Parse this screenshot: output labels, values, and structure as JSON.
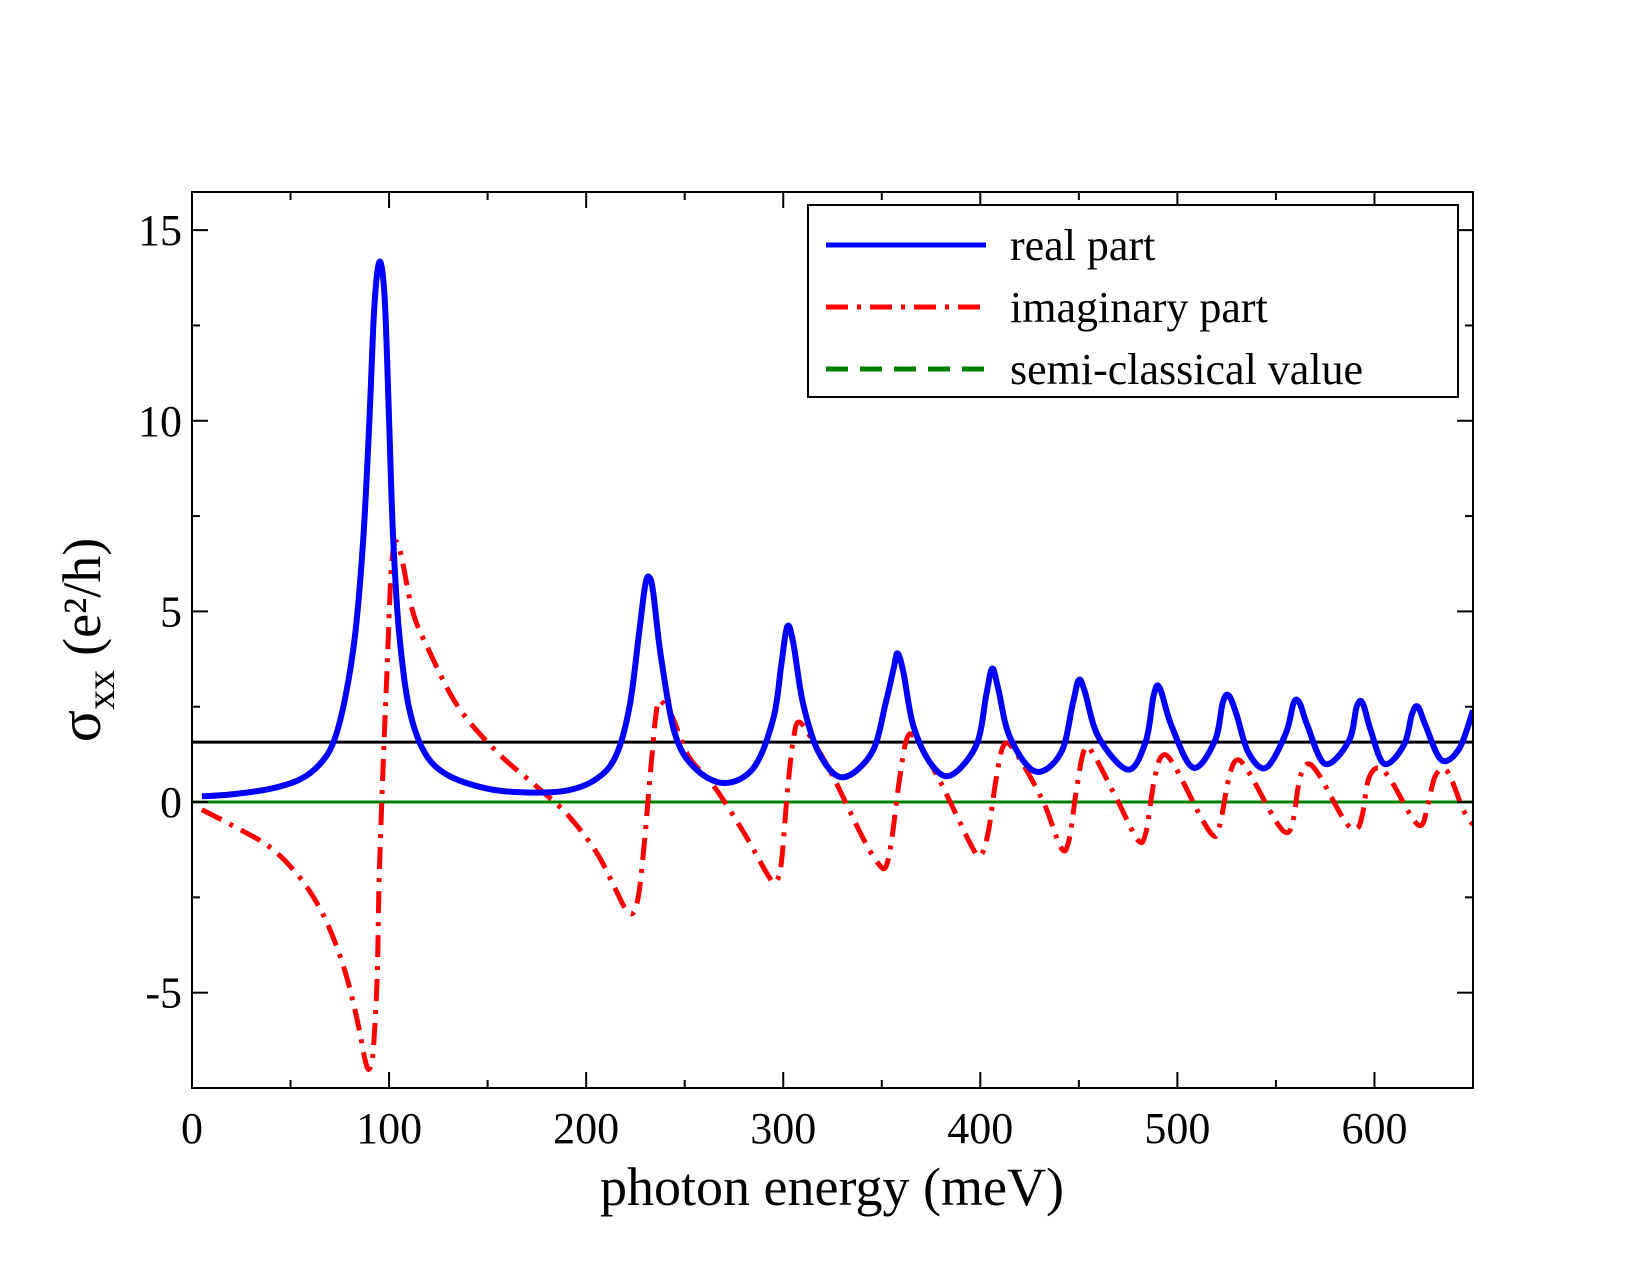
{
  "chart_data": {
    "type": "line",
    "xlabel": "photon energy (meV)",
    "ylabel": {
      "symbol": "σ",
      "subscript": "xx",
      "unit": "(e²/h)"
    },
    "xlim": [
      0,
      650
    ],
    "ylim": [
      -7.5,
      16
    ],
    "xticks": [
      0,
      100,
      200,
      300,
      400,
      500,
      600
    ],
    "yticks": [
      -5,
      0,
      5,
      10,
      15
    ],
    "xtick_labels": [
      "0",
      "100",
      "200",
      "300",
      "400",
      "500",
      "600"
    ],
    "ytick_labels": [
      "-5",
      "0",
      "5",
      "10",
      "15"
    ],
    "x_minor_step": 50,
    "y_minor_step": 2.5,
    "grid": false,
    "legend_position": "top-right",
    "series": [
      {
        "name": "real part",
        "color": "#0000ff",
        "style": "solid",
        "x": [
          5,
          20,
          40,
          55,
          65,
          72,
          78,
          83,
          87,
          90,
          92,
          94,
          96,
          98,
          100,
          102,
          105,
          110,
          118,
          130,
          150,
          170,
          190,
          205,
          215,
          222,
          227,
          230,
          232,
          234,
          238,
          245,
          255,
          270,
          285,
          295,
          299,
          302,
          305,
          310,
          318,
          330,
          345,
          352,
          356,
          358,
          361,
          366,
          375,
          385,
          398,
          403,
          406,
          409,
          415,
          428,
          441,
          447,
          450,
          453,
          460,
          475,
          484,
          488,
          491,
          497,
          508,
          519,
          523,
          526,
          530,
          536,
          545,
          555,
          559,
          562,
          566,
          575,
          587,
          591,
          594,
          598,
          605,
          615,
          619,
          622,
          626,
          634,
          643,
          650
        ],
        "y": [
          0.15,
          0.2,
          0.35,
          0.6,
          1.0,
          1.6,
          2.8,
          4.5,
          7.0,
          10.0,
          12.5,
          13.9,
          14.1,
          13.0,
          10.0,
          7.0,
          4.5,
          2.5,
          1.3,
          0.7,
          0.35,
          0.25,
          0.3,
          0.6,
          1.2,
          2.5,
          4.5,
          5.7,
          5.9,
          5.5,
          3.8,
          1.8,
          0.9,
          0.5,
          0.9,
          2.2,
          3.6,
          4.6,
          4.2,
          2.6,
          1.3,
          0.65,
          1.3,
          2.6,
          3.5,
          3.9,
          3.4,
          2.0,
          1.0,
          0.7,
          1.5,
          2.8,
          3.5,
          3.0,
          1.7,
          0.8,
          1.3,
          2.6,
          3.2,
          2.9,
          1.7,
          0.85,
          1.6,
          2.8,
          3.0,
          2.0,
          0.9,
          1.6,
          2.6,
          2.8,
          2.3,
          1.3,
          0.9,
          1.8,
          2.6,
          2.6,
          2.0,
          1.0,
          1.6,
          2.5,
          2.6,
          1.9,
          1.0,
          1.5,
          2.3,
          2.5,
          2.0,
          1.1,
          1.4,
          2.4
        ]
      },
      {
        "name": "imaginary part",
        "color": "#ff0000",
        "style": "dash-dot",
        "x": [
          5,
          20,
          40,
          55,
          65,
          72,
          78,
          82,
          85,
          88,
          90,
          92,
          94,
          95,
          97,
          99,
          101,
          103,
          106,
          112,
          120,
          135,
          155,
          175,
          190,
          205,
          215,
          220,
          224,
          227,
          230,
          233,
          236,
          239,
          244,
          252,
          265,
          280,
          292,
          296,
          299,
          302,
          305,
          308,
          315,
          325,
          340,
          348,
          352,
          355,
          359,
          363,
          368,
          380,
          395,
          400,
          404,
          408,
          412,
          418,
          432,
          441,
          445,
          449,
          453,
          458,
          470,
          480,
          484,
          488,
          492,
          498,
          512,
          519,
          522,
          526,
          530,
          536,
          550,
          556,
          559,
          562,
          566,
          572,
          585,
          591,
          594,
          597,
          602,
          608,
          619,
          624,
          627,
          631,
          637,
          645,
          650
        ],
        "y": [
          -0.2,
          -0.6,
          -1.2,
          -2.0,
          -2.8,
          -3.6,
          -4.5,
          -5.3,
          -6.0,
          -6.8,
          -7.0,
          -6.5,
          -4.5,
          -2.0,
          1.0,
          3.5,
          6.0,
          6.8,
          6.5,
          5.0,
          4.0,
          2.5,
          1.3,
          0.4,
          -0.3,
          -1.3,
          -2.3,
          -2.8,
          -2.9,
          -2.3,
          -0.8,
          1.0,
          2.5,
          2.6,
          2.2,
          1.2,
          0.4,
          -0.8,
          -1.9,
          -2.1,
          -1.6,
          0.2,
          1.6,
          2.1,
          1.6,
          0.7,
          -0.9,
          -1.6,
          -1.7,
          -1.0,
          0.6,
          1.7,
          1.6,
          0.5,
          -1.1,
          -1.4,
          -0.8,
          0.6,
          1.5,
          1.3,
          0.0,
          -1.2,
          -1.0,
          0.4,
          1.4,
          1.2,
          0.0,
          -1.0,
          -0.8,
          0.5,
          1.2,
          1.0,
          -0.4,
          -0.9,
          -0.5,
          0.6,
          1.1,
          0.8,
          -0.5,
          -0.8,
          -0.4,
          0.6,
          1.0,
          0.7,
          -0.5,
          -0.7,
          -0.3,
          0.6,
          0.9,
          0.6,
          -0.4,
          -0.6,
          -0.1,
          0.7,
          0.8,
          -0.2,
          -0.6
        ]
      },
      {
        "name": "semi-classical value",
        "color": "#008000",
        "style": "dashed",
        "x": [
          0,
          650
        ],
        "y": [
          0,
          0
        ]
      }
    ],
    "reference_lines": [
      {
        "y": 1.57,
        "color": "#000000"
      },
      {
        "y": 0,
        "color": "#008000"
      }
    ]
  }
}
